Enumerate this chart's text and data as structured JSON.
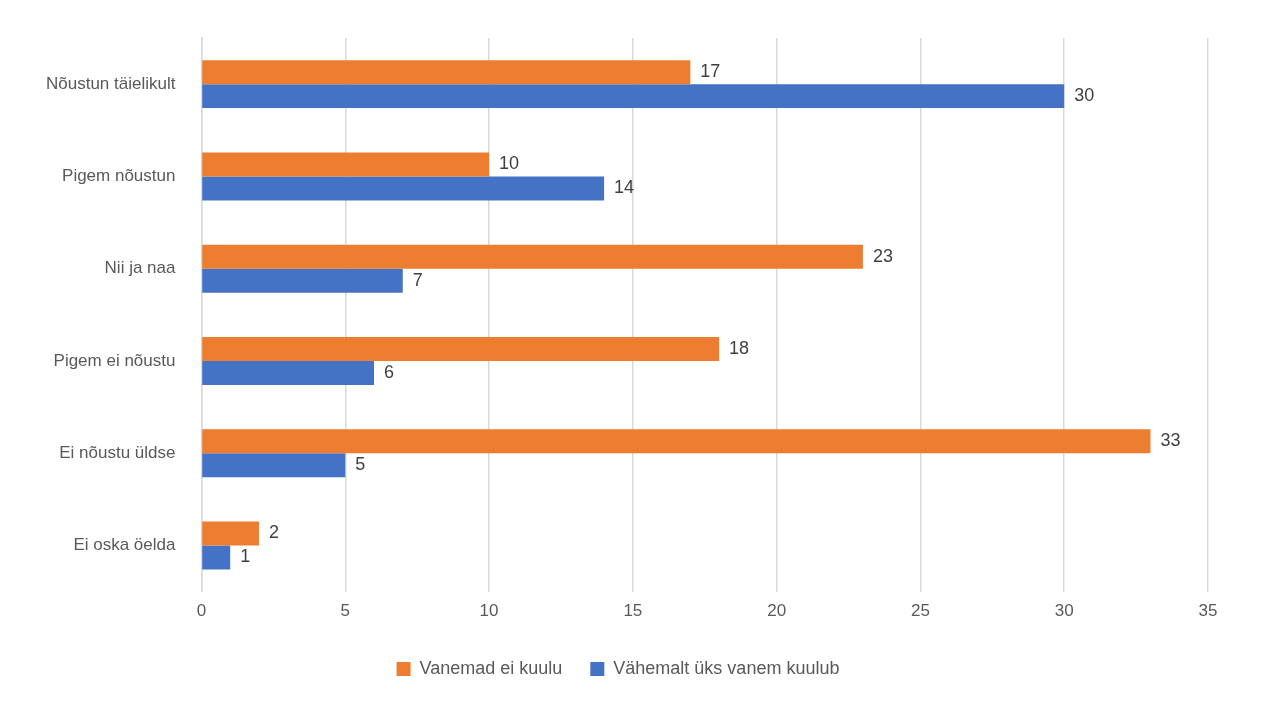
{
  "chart_data": {
    "type": "bar",
    "orientation": "horizontal",
    "categories": [
      "Nõustun täielikult",
      "Pigem nõustun",
      "Nii ja naa",
      "Pigem ei nõustu",
      "Ei nõustu üldse",
      "Ei oska öelda"
    ],
    "series": [
      {
        "name": "Vanemad ei kuulu",
        "color": "#ed7d31",
        "values": [
          17,
          10,
          23,
          18,
          33,
          2
        ]
      },
      {
        "name": "Vähemalt üks vanem kuulub",
        "color": "#4472c4",
        "values": [
          30,
          14,
          7,
          6,
          5,
          1
        ]
      }
    ],
    "xlim": [
      0,
      35
    ],
    "xticks": [
      0,
      5,
      10,
      15,
      20,
      25,
      30,
      35
    ],
    "grid": "x",
    "legend": "bottom",
    "data_labels": true
  }
}
